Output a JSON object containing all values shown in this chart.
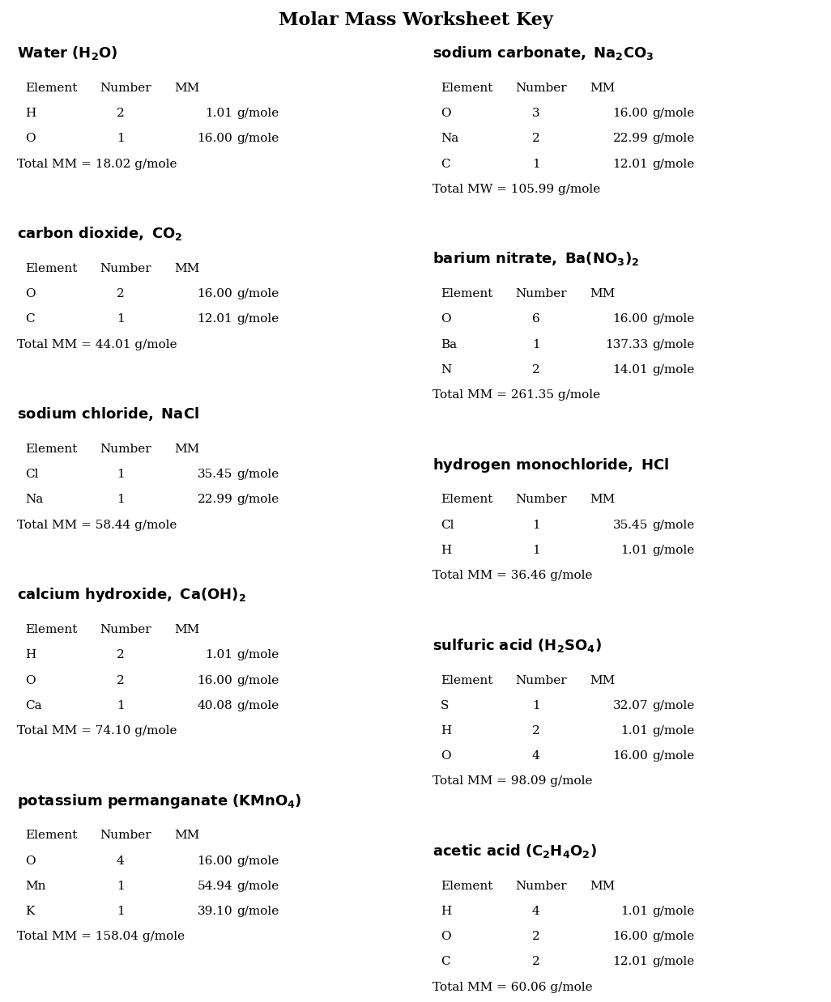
{
  "bg_color": "#ffffff",
  "title": "Molar Mass Worksheet Key",
  "compounds": [
    {
      "title_plain": "Water (H",
      "title_sub": "2",
      "title_end": "O)",
      "title_bold": true,
      "col": 0,
      "row": 0,
      "header": [
        "Element",
        "Number",
        "MM"
      ],
      "elements": [
        [
          "H",
          "2",
          "1.01",
          "g/mole"
        ],
        [
          "O",
          "1",
          "16.00",
          "g/mole"
        ]
      ],
      "total_label": "Total MM",
      "total_val": "18.02",
      "mm_right_aligned": true,
      "total_mw": false
    },
    {
      "title_plain": "carbon dioxide, CO",
      "title_sub": "2",
      "title_end": "",
      "title_bold": true,
      "col": 0,
      "row": 1,
      "header": [
        "Element",
        "Number",
        "MM"
      ],
      "elements": [
        [
          "O",
          "2",
          "16.00",
          "g/mole"
        ],
        [
          "C",
          "1",
          "12.01",
          "g/mole"
        ]
      ],
      "total_label": "Total MM",
      "total_val": "44.01",
      "mm_right_aligned": false,
      "total_mw": false
    },
    {
      "title_plain": "sodium chloride, NaCl",
      "title_sub": "",
      "title_end": "",
      "title_bold": true,
      "col": 0,
      "row": 2,
      "header": [
        "Element",
        "Number",
        "MM"
      ],
      "elements": [
        [
          "Cl",
          "1",
          "35.45",
          "g/mole"
        ],
        [
          "Na",
          "1",
          "22.99",
          "g/mole"
        ]
      ],
      "total_label": "Total MM",
      "total_val": "58.44",
      "mm_right_aligned": false,
      "total_mw": false
    },
    {
      "title_plain": "calcium hydroxide, Ca(OH)",
      "title_sub": "2",
      "title_end": "",
      "title_bold": true,
      "col": 0,
      "row": 3,
      "header": [
        "Element",
        "Number",
        "MM"
      ],
      "elements": [
        [
          "H",
          "2",
          "1.01",
          "g/mole"
        ],
        [
          "O",
          "2",
          "16.00",
          "g/mole"
        ],
        [
          "Ca",
          "1",
          "40.08",
          "g/mole"
        ]
      ],
      "total_label": "Total MM",
      "total_val": "74.10",
      "mm_right_aligned": false,
      "total_mw": false
    },
    {
      "title_plain": "potassium permanganate (KMnO",
      "title_sub": "4",
      "title_end": ")",
      "title_bold": true,
      "col": 0,
      "row": 4,
      "header": [
        "Element",
        "Number",
        "MM"
      ],
      "elements": [
        [
          "O",
          "4",
          "16.00",
          "g/mole"
        ],
        [
          "Mn",
          "1",
          "54.94",
          "g/mole"
        ],
        [
          "K",
          "1",
          "39.10",
          "g/mole"
        ]
      ],
      "total_label": "Total MM",
      "total_val": "158.04",
      "mm_right_aligned": false,
      "total_mw": false
    },
    {
      "title_plain": "sodium carbonate, Na",
      "title_sub": "2",
      "title_end": "CO",
      "title_sub2": "3",
      "title_bold": true,
      "col": 1,
      "row": 0,
      "header": [
        "Element",
        "Number",
        "MM"
      ],
      "elements": [
        [
          "O",
          "3",
          "16.00",
          "g/mole"
        ],
        [
          "Na",
          "2",
          "22.99",
          "g/mole"
        ],
        [
          "C",
          "1",
          "12.01",
          "g/mole"
        ]
      ],
      "total_label": "Total MW",
      "total_val": "105.99",
      "mm_right_aligned": false,
      "total_mw": true
    },
    {
      "title_plain": "barium nitrate, Ba(NO",
      "title_sub": "3",
      "title_end": ")",
      "title_sub2": "2",
      "title_bold": true,
      "col": 1,
      "row": 1,
      "header": [
        "Element",
        "Number",
        "MM"
      ],
      "elements": [
        [
          "O",
          "6",
          "16.00",
          "g/mole"
        ],
        [
          "Ba",
          "1",
          "137.33",
          "g/mole"
        ],
        [
          "N",
          "2",
          "14.01",
          "g/mole"
        ]
      ],
      "total_label": "Total MM",
      "total_val": "261.35",
      "mm_right_aligned": false,
      "total_mw": false
    },
    {
      "title_plain": "hydrogen monochloride, HCl",
      "title_sub": "",
      "title_end": "",
      "title_bold": true,
      "col": 1,
      "row": 2,
      "header": [
        "Element",
        "Number",
        "MM"
      ],
      "elements": [
        [
          "Cl",
          "1",
          "35.45",
          "g/mole"
        ],
        [
          "H",
          "1",
          "1.01",
          "g/mole"
        ]
      ],
      "total_label": "Total MM",
      "total_val": "36.46",
      "mm_right_aligned": false,
      "total_mw": false
    },
    {
      "title_plain": "sulfuric acid (H",
      "title_sub": "2",
      "title_end": "SO",
      "title_sub2": "4",
      "title_end2": ")",
      "title_bold": true,
      "col": 1,
      "row": 3,
      "header": [
        "Element",
        "Number",
        "MM"
      ],
      "elements": [
        [
          "S",
          "1",
          "32.07",
          "g/mole"
        ],
        [
          "H",
          "2",
          "1.01",
          "g/mole"
        ],
        [
          "O",
          "4",
          "16.00",
          "g/mole"
        ]
      ],
      "total_label": "Total MM",
      "total_val": "98.09",
      "mm_right_aligned": false,
      "total_mw": false
    },
    {
      "title_plain": "acetic acid (C",
      "title_sub": "2",
      "title_end": "H",
      "title_sub2": "4",
      "title_end2": "O",
      "title_sub3": "2",
      "title_end3": ")",
      "title_bold": true,
      "col": 1,
      "row": 4,
      "header": [
        "Element",
        "Number",
        "MM"
      ],
      "elements": [
        [
          "H",
          "4",
          "1.01",
          "g/mole"
        ],
        [
          "O",
          "2",
          "16.00",
          "g/mole"
        ],
        [
          "C",
          "2",
          "12.01",
          "g/mole"
        ]
      ],
      "total_label": "Total MM",
      "total_val": "60.06",
      "mm_right_aligned": false,
      "total_mw": false
    }
  ],
  "font_size_title": 13,
  "font_size_header": 11,
  "font_size_data": 11,
  "font_size_total": 11
}
